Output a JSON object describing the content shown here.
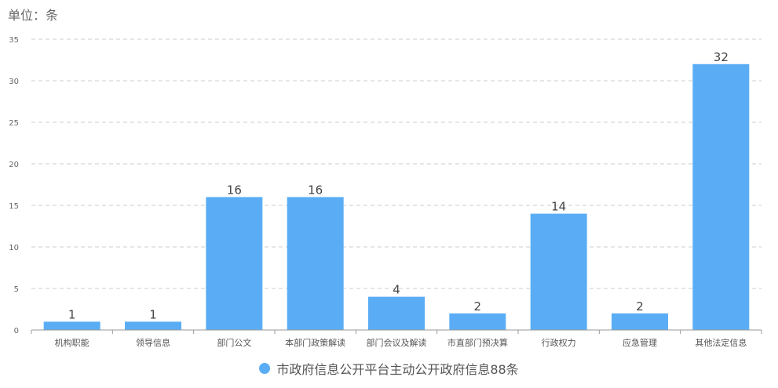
{
  "unit_label": "单位：条",
  "chart_data": {
    "type": "bar",
    "categories": [
      "机构职能",
      "领导信息",
      "部门公文",
      "本部门政策解读",
      "部门会议及解读",
      "市直部门预决算",
      "行政权力",
      "应急管理",
      "其他法定信息"
    ],
    "series": [
      {
        "name": "市政府信息公开平台主动公开政府信息88条",
        "values": [
          1,
          1,
          16,
          16,
          4,
          2,
          14,
          2,
          32
        ]
      }
    ],
    "ylim": [
      0,
      35
    ],
    "yticks": [
      0,
      5,
      10,
      15,
      20,
      25,
      30,
      35
    ],
    "grid": true,
    "legend_position": "bottom-center",
    "bar_color": "#5aadf5"
  }
}
